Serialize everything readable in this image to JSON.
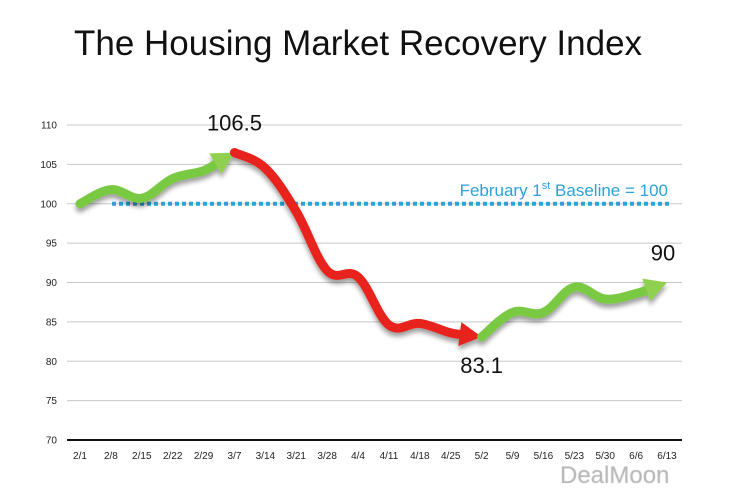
{
  "watermark": "DealMoon",
  "colors": {
    "rise": "#7ac943",
    "rise_arrow": "#8fd14f",
    "fall": "#e8231a",
    "baseline": "#2aa3d8",
    "grid": "#c8c8c8",
    "axis": "#111111"
  },
  "chart_data": {
    "type": "line",
    "title": "The Housing Market Recovery Index",
    "xlabel": "",
    "ylabel": "",
    "ylim": [
      70,
      110
    ],
    "yticks": [
      70,
      75,
      80,
      85,
      90,
      95,
      100,
      105,
      110
    ],
    "categories": [
      "2/1",
      "2/8",
      "2/15",
      "2/22",
      "2/29",
      "3/7",
      "3/14",
      "3/21",
      "3/28",
      "4/4",
      "4/11",
      "4/18",
      "4/25",
      "5/2",
      "5/9",
      "5/16",
      "5/23",
      "5/30",
      "6/6",
      "6/13"
    ],
    "series": [
      {
        "name": "Index",
        "values": [
          100,
          101.8,
          100.7,
          103.2,
          104.2,
          106.5,
          104.5,
          99,
          91.5,
          90.7,
          84.6,
          84.8,
          83.6,
          83.1,
          86.2,
          86.2,
          89.4,
          87.9,
          88.6,
          90
        ]
      }
    ],
    "baseline": {
      "value": 100,
      "label_main": "February 1",
      "label_sup": "st",
      "label_rest": " Baseline = 100"
    },
    "annotations": [
      {
        "text": "106.5",
        "category": "3/7",
        "value": 106.5
      },
      {
        "text": "83.1",
        "category": "5/2",
        "value": 83.1
      },
      {
        "text": "90",
        "category": "6/13",
        "value": 90
      }
    ],
    "segments": [
      {
        "name": "rise-1",
        "from": "2/1",
        "to": "3/7",
        "color": "green"
      },
      {
        "name": "decline",
        "from": "3/7",
        "to": "5/2",
        "color": "red"
      },
      {
        "name": "rise-2",
        "from": "5/2",
        "to": "6/13",
        "color": "green"
      }
    ]
  }
}
